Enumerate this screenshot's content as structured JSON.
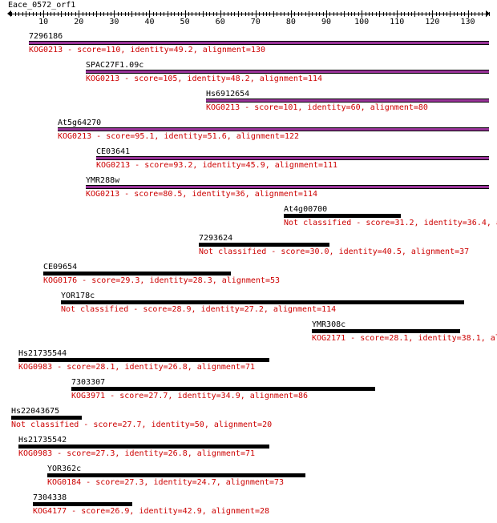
{
  "query": {
    "name": "Eace_0572_orf1"
  },
  "axis": {
    "min": 0,
    "max": 136,
    "labels": [
      10,
      20,
      30,
      40,
      50,
      60,
      70,
      80,
      90,
      100,
      110,
      120,
      130
    ]
  },
  "colors": {
    "kog_bar": "#000000",
    "kog_bar_inner": "#993399",
    "label": "#000000",
    "desc": "#cc0000"
  },
  "hits": [
    {
      "name": "7296186",
      "desc": "KOG0213 - score=110, identity=49.2, alignment=130",
      "start": 6,
      "end": 136,
      "colored": true
    },
    {
      "name": "SPAC27F1.09c",
      "desc": "KOG0213 - score=105, identity=48.2, alignment=114",
      "start": 22,
      "end": 136,
      "colored": true
    },
    {
      "name": "Hs6912654",
      "desc": "KOG0213 - score=101, identity=60, alignment=80",
      "start": 56,
      "end": 136,
      "colored": true
    },
    {
      "name": "At5g64270",
      "desc": "KOG0213 - score=95.1, identity=51.6, alignment=122",
      "start": 14,
      "end": 136,
      "colored": true
    },
    {
      "name": "CE03641",
      "desc": "KOG0213 - score=93.2, identity=45.9, alignment=111",
      "start": 25,
      "end": 136,
      "colored": true
    },
    {
      "name": "YMR288w",
      "desc": "KOG0213 - score=80.5, identity=36, alignment=114",
      "start": 22,
      "end": 136,
      "colored": true
    },
    {
      "name": "At4g00700",
      "desc": "Not classified - score=31.2, identity=36.4, a",
      "start": 78,
      "end": 111,
      "colored": false
    },
    {
      "name": "7293624",
      "desc": "Not classified - score=30.0, identity=40.5, alignment=37",
      "start": 54,
      "end": 91,
      "colored": false
    },
    {
      "name": "CE09654",
      "desc": "KOG0176 - score=29.3, identity=28.3, alignment=53",
      "start": 10,
      "end": 63,
      "colored": false
    },
    {
      "name": "YOR178c",
      "desc": "Not classified - score=28.9, identity=27.2, alignment=114",
      "start": 15,
      "end": 129,
      "colored": false
    },
    {
      "name": "YMR308c",
      "desc": "KOG2171 - score=28.1, identity=38.1, al",
      "start": 86,
      "end": 128,
      "colored": false
    },
    {
      "name": "Hs21735544",
      "desc": "KOG0983 - score=28.1, identity=26.8, alignment=71",
      "start": 3,
      "end": 74,
      "colored": false
    },
    {
      "name": "7303307",
      "desc": "KOG3971 - score=27.7, identity=34.9, alignment=86",
      "start": 18,
      "end": 104,
      "colored": false
    },
    {
      "name": "Hs22043675",
      "desc": "Not classified - score=27.7, identity=50, alignment=20",
      "start": 1,
      "end": 21,
      "colored": false
    },
    {
      "name": "Hs21735542",
      "desc": "KOG0983 - score=27.3, identity=26.8, alignment=71",
      "start": 3,
      "end": 74,
      "colored": false
    },
    {
      "name": "YOR362c",
      "desc": "KOG0184 - score=27.3, identity=24.7, alignment=73",
      "start": 11,
      "end": 84,
      "colored": false
    },
    {
      "name": "7304338",
      "desc": "KOG4177 - score=26.9, identity=42.9, alignment=28",
      "start": 7,
      "end": 35,
      "colored": false
    }
  ]
}
